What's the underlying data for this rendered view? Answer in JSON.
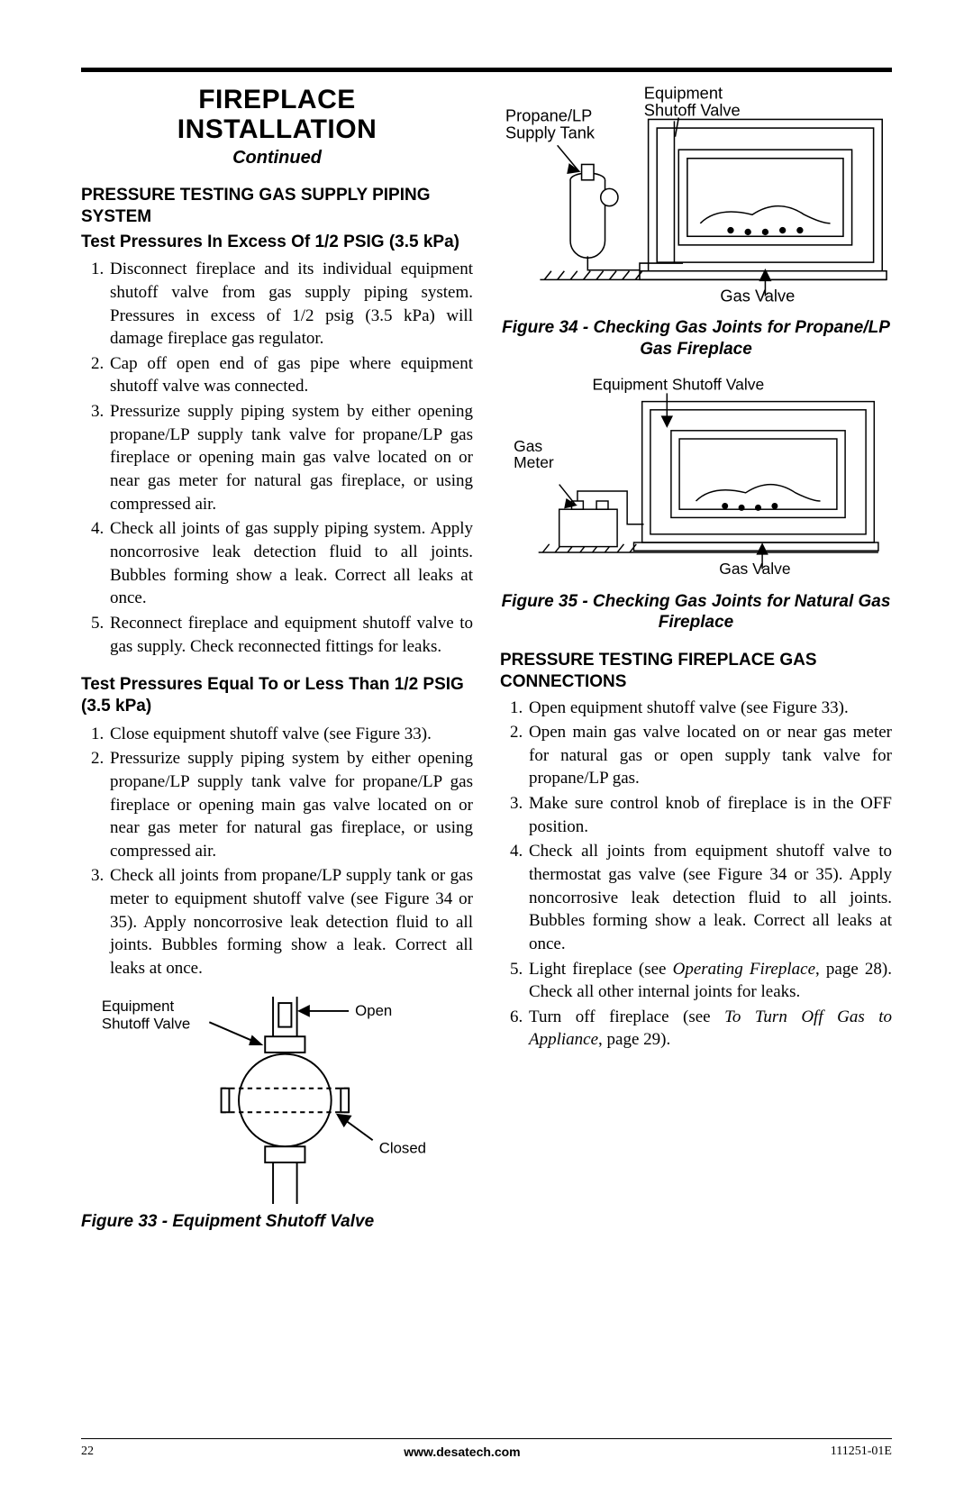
{
  "colors": {
    "text": "#000000",
    "bg": "#ffffff",
    "rule": "#000000"
  },
  "title_line1": "FIREPLACE",
  "title_line2": "INSTALLATION",
  "continued": "Continued",
  "left": {
    "h1": "PRESSURE TESTING GAS SUPPLY PIPING SYSTEM",
    "h2a": "Test Pressures In Excess Of 1/2 PSIG (3.5 kPa)",
    "listA": [
      "Disconnect fireplace and its individual equipment shutoff valve from gas supply piping system. Pressures in excess of 1/2 psig (3.5 kPa) will damage fireplace gas regulator.",
      "Cap off open end of gas pipe where equipment shutoff valve was connected.",
      "Pressurize supply piping system by either opening propane/LP supply tank valve for propane/LP gas fireplace or opening main gas valve located on or near gas meter for natural gas fireplace, or using compressed air.",
      "Check all joints of gas supply piping system. Apply noncorrosive leak detection fluid to all joints. Bubbles forming show a leak. Correct all leaks at once.",
      "Reconnect fireplace and equipment shutoff valve to gas supply. Check reconnected fittings for leaks."
    ],
    "h2b": "Test Pressures Equal To or Less Than 1/2 PSIG (3.5 kPa)",
    "listB": [
      "Close equipment shutoff valve (see Figure 33).",
      "Pressurize supply piping system by either opening propane/LP supply tank valve for propane/LP gas fireplace or opening main gas valve located on or near gas meter for natural gas fireplace, or using compressed air.",
      "Check all joints from propane/LP supply tank or gas meter to equipment shutoff valve (see Figure 34 or 35). Apply noncorrosive leak detection fluid to all joints. Bubbles forming show a leak. Correct all leaks at once."
    ],
    "fig33": {
      "caption": "Figure 33 - Equipment Shutoff Valve",
      "label_equipment": "Equipment\nShutoff Valve",
      "label_open": "Open",
      "label_closed": "Closed"
    }
  },
  "right": {
    "fig34": {
      "label_tank": "Propane/LP\nSupply Tank",
      "label_shutoff": "Equipment\nShutoff Valve",
      "label_gasvalve": "Gas Valve",
      "caption": "Figure 34 - Checking Gas Joints for Propane/LP Gas Fireplace"
    },
    "fig35": {
      "label_shutoff": "Equipment Shutoff Valve",
      "label_meter": "Gas\nMeter",
      "label_gasvalve": "Gas Valve",
      "caption": "Figure 35 - Checking Gas Joints for Natural Gas Fireplace"
    },
    "h1": "PRESSURE TESTING FIREPLACE GAS CONNECTIONS",
    "list": [
      "Open equipment shutoff valve (see Figure 33).",
      "Open main gas valve located on or near gas meter for natural gas or open supply tank valve for propane/LP gas.",
      "Make sure control knob of fireplace is in the OFF position.",
      "Check all joints from equipment shutoff valve to thermostat gas valve (see Figure 34 or 35). Apply noncorrosive leak detection fluid to all joints. Bubbles forming show a leak. Correct all leaks at once.",
      "Light fireplace (see <span class=\"em\">Operating Fireplace</span>, page 28). Check all other internal joints for leaks.",
      "Turn off fireplace (see <span class=\"em\">To Turn Off Gas to Appliance</span>, page 29)."
    ]
  },
  "footer": {
    "page": "22",
    "url": "www.desatech.com",
    "doc": "111251-01E"
  }
}
